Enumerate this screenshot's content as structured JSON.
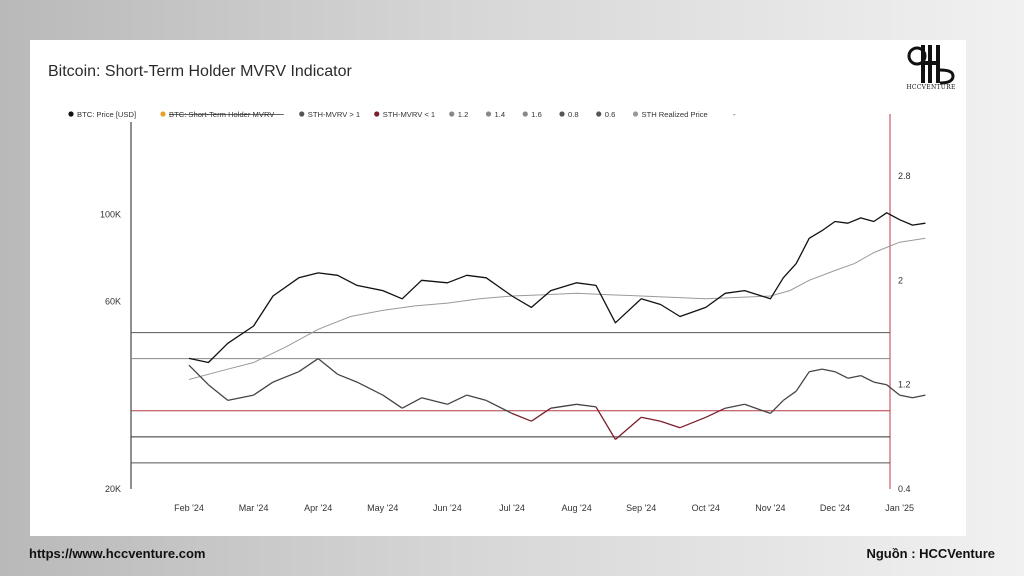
{
  "footer": {
    "url": "https://www.hccventure.com",
    "source": "Nguồn : HCCVenture"
  },
  "logo": {
    "text": "HCCVENTURE"
  },
  "chart_data": {
    "type": "line",
    "title": "Bitcoin: Short-Term Holder MVRV Indicator",
    "legend_position": "top",
    "legend": [
      {
        "label": "BTC: Price [USD]",
        "color": "#111111",
        "struck": false
      },
      {
        "label": "BTC: Short-Term Holder MVRV",
        "color": "#e8a12a",
        "struck": true
      },
      {
        "label": "STH-MVRV > 1",
        "color": "#555555",
        "struck": false
      },
      {
        "label": "STH-MVRV < 1",
        "color": "#7a1f2b",
        "struck": false
      },
      {
        "label": "1.2",
        "color": "#888888",
        "struck": false
      },
      {
        "label": "1.4",
        "color": "#888888",
        "struck": false
      },
      {
        "label": "1.6",
        "color": "#888888",
        "struck": false
      },
      {
        "label": "0.8",
        "color": "#555555",
        "struck": false
      },
      {
        "label": "0.6",
        "color": "#555555",
        "struck": false
      },
      {
        "label": "STH Realized Price",
        "color": "#999999",
        "struck": false
      },
      {
        "label": "-",
        "color": "#888888",
        "struck": false,
        "plain": true
      }
    ],
    "x_ticks": [
      "Feb '24",
      "Mar '24",
      "Apr '24",
      "May '24",
      "Jun '24",
      "Jul '24",
      "Aug '24",
      "Sep '24",
      "Oct '24",
      "Nov '24",
      "Dec '24",
      "Jan '25"
    ],
    "left_axis": {
      "scale": "log",
      "ticks": [
        "100K",
        "60K",
        "20K"
      ],
      "tick_values": [
        100000,
        60000,
        20000
      ],
      "range": [
        20000,
        170000
      ]
    },
    "right_axis": {
      "ticks": [
        "2.8",
        "2",
        "1.2",
        "0.4"
      ],
      "tick_values": [
        2.8,
        2.0,
        1.2,
        0.4
      ],
      "range": [
        0.4,
        3.2
      ]
    },
    "reference_lines": [
      {
        "value": 1.6,
        "color": "#555555"
      },
      {
        "value": 1.4,
        "color": "#888888"
      },
      {
        "value": 1.0,
        "color": "#b23a48"
      },
      {
        "value": 0.8,
        "color": "#333333"
      },
      {
        "value": 0.6,
        "color": "#555555"
      }
    ],
    "series": [
      {
        "name": "BTC: Price [USD]",
        "axis": "left",
        "x": [
          0.0,
          0.3,
          0.6,
          1.0,
          1.3,
          1.7,
          2.0,
          2.3,
          2.6,
          3.0,
          3.3,
          3.6,
          4.0,
          4.3,
          4.6,
          5.0,
          5.3,
          5.6,
          6.0,
          6.3,
          6.6,
          7.0,
          7.3,
          7.6,
          8.0,
          8.3,
          8.6,
          9.0,
          9.2,
          9.4,
          9.6,
          9.8,
          10.0,
          10.2,
          10.4,
          10.6,
          10.8,
          11.0,
          11.2,
          11.4
        ],
        "values": [
          43000,
          42000,
          47000,
          52000,
          62000,
          69000,
          71000,
          70000,
          66000,
          64000,
          61000,
          68000,
          67000,
          70000,
          69000,
          62000,
          58000,
          64000,
          67000,
          66000,
          53000,
          61000,
          59000,
          55000,
          58000,
          63000,
          64000,
          61000,
          69000,
          75000,
          87000,
          91000,
          96000,
          95000,
          98000,
          96000,
          101000,
          97000,
          94000,
          95000
        ]
      },
      {
        "name": "STH-MVRV",
        "axis": "right",
        "x": [
          0.0,
          0.3,
          0.6,
          1.0,
          1.3,
          1.7,
          2.0,
          2.3,
          2.6,
          3.0,
          3.3,
          3.6,
          4.0,
          4.3,
          4.6,
          5.0,
          5.3,
          5.6,
          6.0,
          6.3,
          6.6,
          7.0,
          7.3,
          7.6,
          8.0,
          8.3,
          8.6,
          9.0,
          9.2,
          9.4,
          9.6,
          9.8,
          10.0,
          10.2,
          10.4,
          10.6,
          10.8,
          11.0,
          11.2,
          11.4
        ],
        "values": [
          1.35,
          1.2,
          1.08,
          1.12,
          1.22,
          1.3,
          1.4,
          1.28,
          1.22,
          1.12,
          1.02,
          1.1,
          1.05,
          1.12,
          1.08,
          0.98,
          0.92,
          1.02,
          1.05,
          1.03,
          0.78,
          0.95,
          0.92,
          0.87,
          0.95,
          1.02,
          1.05,
          0.98,
          1.08,
          1.15,
          1.3,
          1.32,
          1.3,
          1.25,
          1.27,
          1.22,
          1.2,
          1.12,
          1.1,
          1.12
        ]
      },
      {
        "name": "STH Realized Price",
        "axis": "left",
        "x": [
          0.0,
          0.5,
          1.0,
          1.5,
          2.0,
          2.5,
          3.0,
          3.5,
          4.0,
          4.5,
          5.0,
          5.5,
          6.0,
          6.5,
          7.0,
          7.5,
          8.0,
          8.5,
          9.0,
          9.3,
          9.6,
          10.0,
          10.3,
          10.6,
          11.0,
          11.4
        ],
        "values": [
          38000,
          40000,
          42000,
          46000,
          51000,
          55000,
          57000,
          58500,
          59500,
          61000,
          62000,
          62500,
          63000,
          62500,
          62000,
          61500,
          61000,
          61500,
          62000,
          64000,
          68000,
          72000,
          75000,
          80000,
          85000,
          87000
        ]
      }
    ]
  }
}
